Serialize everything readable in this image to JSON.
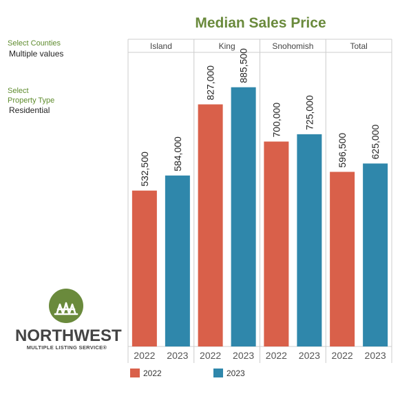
{
  "chart_data": {
    "type": "bar",
    "title": "Median Sales Price",
    "groups": [
      "Island",
      "King",
      "Snohomish",
      "Total"
    ],
    "x_tick_labels": [
      "2022",
      "2023"
    ],
    "series": [
      {
        "name": "2022",
        "color": "#d9604a",
        "values": [
          532500,
          827000,
          700000,
          596500
        ]
      },
      {
        "name": "2023",
        "color": "#2f87ab",
        "values": [
          584000,
          885500,
          725000,
          625000
        ]
      }
    ],
    "data_labels": [
      [
        "532,500",
        "584,000"
      ],
      [
        "827,000",
        "885,500"
      ],
      [
        "700,000",
        "725,000"
      ],
      [
        "596,500",
        "625,000"
      ]
    ],
    "ylim": [
      0,
      1000000
    ],
    "grid": false,
    "legend": "bottom"
  },
  "filters": {
    "counties": {
      "label": "Select Counties",
      "value": "Multiple values"
    },
    "property_type": {
      "label_line1": "Select",
      "label_line2": "Property Type",
      "value": "Residential"
    }
  },
  "logo": {
    "name": "NORTHWEST",
    "sub": "MULTIPLE LISTING SERVICE®",
    "circle_color": "#6a8a3c"
  }
}
